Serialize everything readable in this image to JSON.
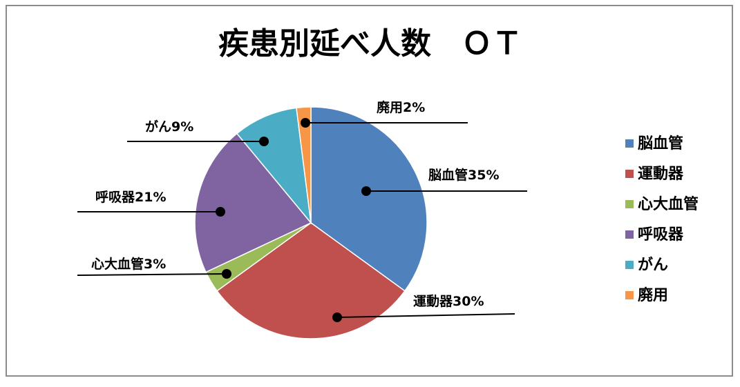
{
  "chart_data": {
    "type": "pie",
    "title": "疾患別延べ人数　ＯＴ",
    "categories": [
      "脳血管",
      "運動器",
      "心大血管",
      "呼吸器",
      "がん",
      "廃用"
    ],
    "values": [
      35,
      30,
      3,
      21,
      9,
      2
    ],
    "unit": "%",
    "colors": [
      "#4f81bd",
      "#c0504d",
      "#9bbb59",
      "#8064a2",
      "#4bacc6",
      "#f79646"
    ],
    "data_labels": [
      "脳血管35%",
      "運動器30%",
      "心大血管3%",
      "呼吸器21%",
      "がん9%",
      "廃用2%"
    ],
    "legend": {
      "position": "right",
      "entries": [
        "脳血管",
        "運動器",
        "心大血管",
        "呼吸器",
        "がん",
        "廃用"
      ]
    }
  }
}
